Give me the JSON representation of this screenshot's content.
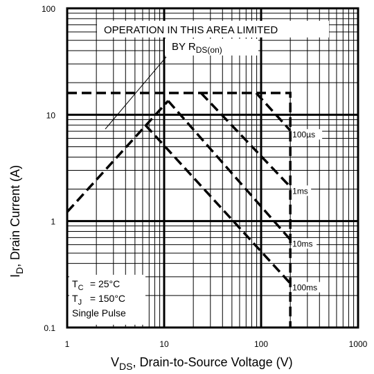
{
  "chart_data": {
    "type": "line",
    "xscale": "log",
    "yscale": "log",
    "xlim": [
      1,
      1000
    ],
    "ylim": [
      0.1,
      100
    ],
    "xticks": [
      1,
      10,
      100,
      1000
    ],
    "yticks": [
      0.1,
      1,
      10,
      100
    ],
    "xminor_ticks": [
      2,
      3,
      4,
      5,
      6,
      7,
      8,
      9,
      20,
      30,
      40,
      50,
      60,
      70,
      80,
      90,
      200,
      300,
      400,
      500,
      600,
      700,
      800,
      900
    ],
    "yminor_ticks": [
      0.2,
      0.3,
      0.4,
      0.5,
      0.6,
      0.7,
      0.8,
      0.9,
      2,
      3,
      4,
      5,
      6,
      7,
      8,
      9,
      20,
      30,
      40,
      50,
      60,
      70,
      80,
      90
    ],
    "grid": true,
    "color": "#000000",
    "x_label": {
      "main": "V",
      "sub": "DS",
      "rest": ", Drain-to-Source Voltage (V)"
    },
    "y_label": {
      "main": "I",
      "sub": "D",
      "rest": ", Drain Current (A)"
    },
    "annotation": {
      "line1": "OPERATION IN THIS AREA LIMITED",
      "line2": "BY R",
      "line2_sub": "DS(on)"
    },
    "conditions": [
      {
        "main": "T",
        "sub": "C",
        "rest": " = 25°C"
      },
      {
        "main": "T",
        "sub": "J",
        "rest": " = 150°C"
      },
      {
        "main": "Single Pulse"
      }
    ],
    "series": [
      {
        "x": [
          1,
          11
        ],
        "values": [
          1.22,
          13.5
        ]
      },
      {
        "x": [
          1,
          200,
          200
        ],
        "values": [
          16,
          16,
          0.1
        ]
      },
      {
        "name": "100µs",
        "x": [
          89,
          200
        ],
        "values": [
          16,
          7.1
        ]
      },
      {
        "name": "1ms",
        "x": [
          24,
          200
        ],
        "values": [
          16,
          2.1
        ]
      },
      {
        "name": "10ms",
        "x": [
          11,
          200
        ],
        "values": [
          13.5,
          0.67
        ]
      },
      {
        "name": "100ms",
        "x": [
          6.4,
          200
        ],
        "values": [
          8,
          0.26
        ]
      }
    ]
  }
}
